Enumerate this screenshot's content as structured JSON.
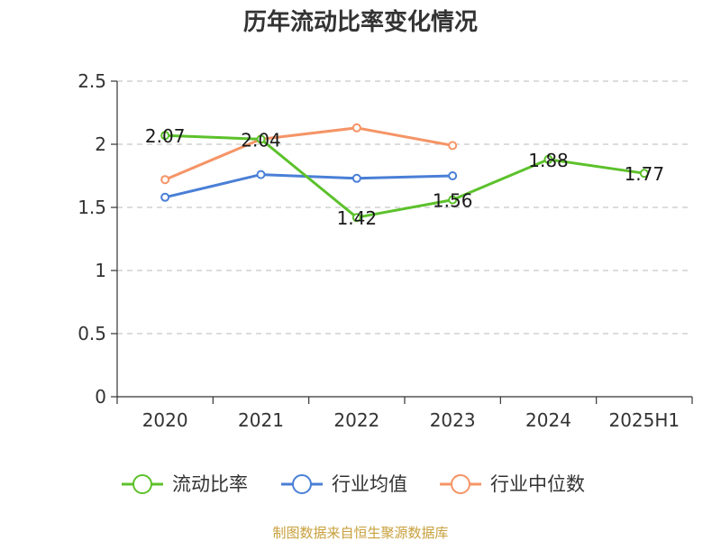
{
  "chart_data": {
    "type": "line",
    "title": "历年流动比率变化情况",
    "categories": [
      "2020",
      "2021",
      "2022",
      "2023",
      "2024",
      "2025H1"
    ],
    "ylim": [
      0,
      2.5
    ],
    "yticks": [
      "0",
      "0.5",
      "1",
      "1.5",
      "2",
      "2.5"
    ],
    "grid": true,
    "legend_position": "bottom",
    "series": [
      {
        "name": "流动比率",
        "color": "#5cc12b",
        "labels": true,
        "values": [
          2.07,
          2.04,
          1.42,
          1.56,
          1.88,
          1.77
        ]
      },
      {
        "name": "行业均值",
        "color": "#4a7fd6",
        "labels": false,
        "values": [
          1.58,
          1.76,
          1.73,
          1.75,
          null,
          null
        ]
      },
      {
        "name": "行业中位数",
        "color": "#f59466",
        "labels": false,
        "values": [
          1.72,
          2.04,
          2.13,
          1.99,
          null,
          null
        ]
      }
    ]
  },
  "source": "制图数据来自恒生聚源数据库"
}
